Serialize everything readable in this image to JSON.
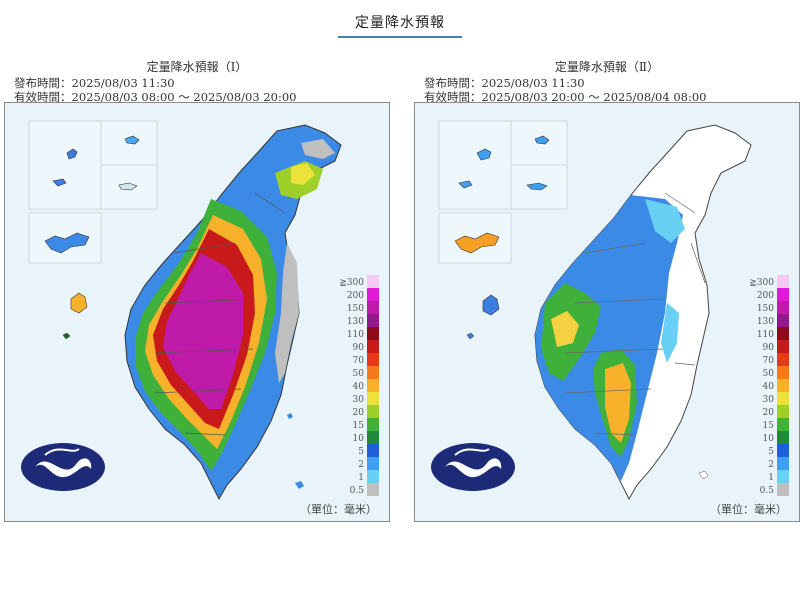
{
  "page": {
    "title": "定量降水預報"
  },
  "legend": {
    "levels": [
      "≧300",
      "200",
      "150",
      "130",
      "110",
      "90",
      "70",
      "50",
      "40",
      "30",
      "20",
      "15",
      "10",
      "5",
      "2",
      "1",
      "0.5"
    ],
    "colors": [
      "#f7c8f2",
      "#e01ad6",
      "#c01aa8",
      "#8e1a8e",
      "#8c0b1a",
      "#c81a1a",
      "#e83a1a",
      "#f47a1a",
      "#f7b12b",
      "#ede23a",
      "#9fd02a",
      "#3fb03a",
      "#208a3a",
      "#1f5fd8",
      "#3fa0f2",
      "#68cff5",
      "#bfbfbf"
    ]
  },
  "panels": [
    {
      "title": "定量降水預報（Ⅰ）",
      "issued": "發布時間：2025/08/03 11:30",
      "valid": "有效時間：2025/08/03 08:00 ～ 2025/08/03 20:00",
      "unit": "（單位：毫米）"
    },
    {
      "title": "定量降水預報（Ⅱ）",
      "issued": "發布時間：2025/08/03 11:30",
      "valid": "有效時間：2025/08/03 20:00 ～ 2025/08/04 08:00",
      "unit": "（單位：毫米）"
    }
  ]
}
